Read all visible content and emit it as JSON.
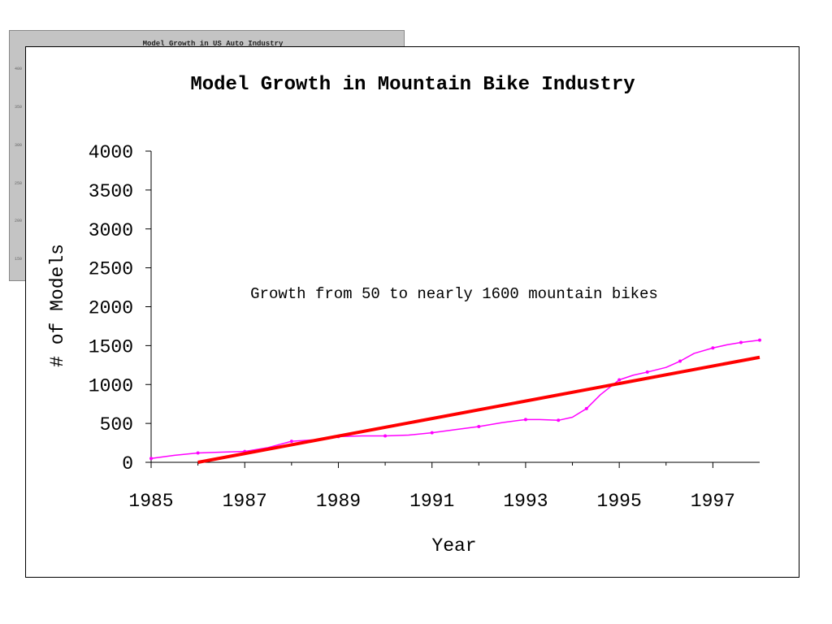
{
  "background_slide": {
    "title": "Model Growth in US Auto Industry",
    "tick_labels": [
      "400",
      "350",
      "300",
      "250",
      "200",
      "150"
    ]
  },
  "chart_data": {
    "type": "line",
    "title": "Model Growth in Mountain Bike Industry",
    "xlabel": "Year",
    "ylabel": "# of Models",
    "annotation": "Growth from 50 to nearly 1600 mountain bikes",
    "xlim": [
      1985,
      1998
    ],
    "ylim": [
      0,
      4000
    ],
    "x_ticks": [
      1985,
      1987,
      1989,
      1991,
      1993,
      1995,
      1997
    ],
    "y_ticks": [
      0,
      500,
      1000,
      1500,
      2000,
      2500,
      3000,
      3500,
      4000
    ],
    "grid": false,
    "legend": "none",
    "series": [
      {
        "color": "#ff00ff",
        "style": "line-with-markers",
        "x": [
          1985,
          1985.5,
          1986,
          1986.5,
          1987,
          1987.5,
          1988,
          1988.5,
          1989,
          1989.5,
          1990,
          1990.5,
          1991,
          1991.5,
          1992,
          1992.5,
          1993,
          1993.3,
          1993.7,
          1994,
          1994.3,
          1994.6,
          1995,
          1995.3,
          1995.6,
          1996,
          1996.3,
          1996.6,
          1997,
          1997.3,
          1997.6,
          1998
        ],
        "y": [
          50,
          90,
          120,
          130,
          140,
          190,
          270,
          290,
          330,
          340,
          340,
          350,
          380,
          420,
          460,
          510,
          550,
          550,
          540,
          580,
          690,
          870,
          1060,
          1120,
          1160,
          1220,
          1300,
          1400,
          1470,
          1510,
          1540,
          1570
        ]
      },
      {
        "color": "#ff0000",
        "style": "trend-line",
        "x": [
          1986,
          1998
        ],
        "y": [
          0,
          1350
        ]
      }
    ]
  }
}
